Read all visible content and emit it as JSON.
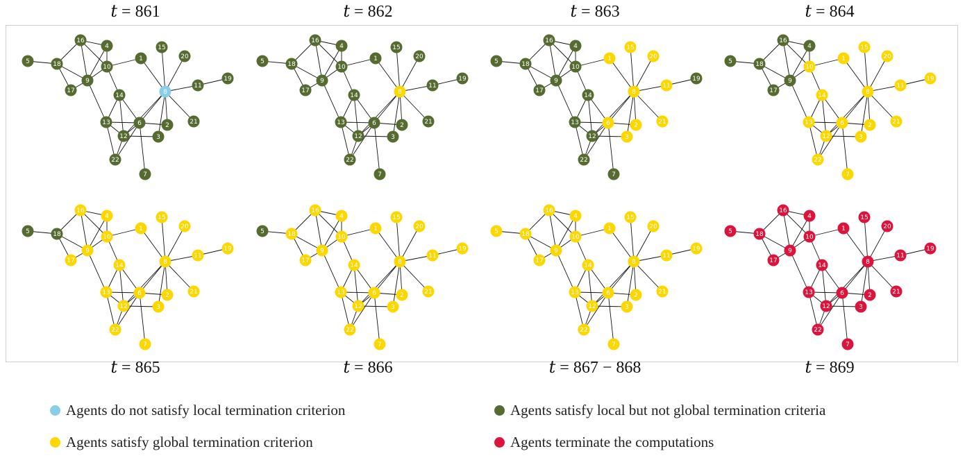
{
  "colors": {
    "not_local": "#87ceeb",
    "local": "#556b2f",
    "global": "#ffd700",
    "terminated": "#dc143c",
    "edge": "#111111"
  },
  "panels": [
    {
      "title": "𝑡 = 861",
      "states": {
        "default": "local",
        "8": "not_local"
      }
    },
    {
      "title": "𝑡 = 862",
      "states": {
        "default": "local",
        "8": "global"
      }
    },
    {
      "title": "𝑡 = 863",
      "states": {
        "default": "local",
        "1": "global",
        "15": "global",
        "20": "global",
        "11": "global",
        "8": "global",
        "6": "global",
        "2": "global",
        "3": "global",
        "21": "global"
      }
    },
    {
      "title": "𝑡 = 864",
      "states": {
        "default": "global",
        "5": "local",
        "18": "local",
        "16": "local",
        "4": "local",
        "17": "local",
        "9": "local"
      }
    },
    {
      "title": "𝑡 = 865",
      "states": {
        "default": "global",
        "5": "local",
        "18": "local"
      }
    },
    {
      "title": "𝑡 = 866",
      "states": {
        "default": "global",
        "5": "local"
      }
    },
    {
      "title": "𝑡 = 867 − 868",
      "states": {
        "default": "global"
      }
    },
    {
      "title": "𝑡 = 869",
      "states": {
        "default": "terminated"
      }
    }
  ],
  "nodes": [
    {
      "id": "5"
    },
    {
      "id": "18"
    },
    {
      "id": "16"
    },
    {
      "id": "17"
    },
    {
      "id": "9"
    },
    {
      "id": "4"
    },
    {
      "id": "10"
    },
    {
      "id": "1"
    },
    {
      "id": "15"
    },
    {
      "id": "20"
    },
    {
      "id": "8"
    },
    {
      "id": "11"
    },
    {
      "id": "19"
    },
    {
      "id": "14"
    },
    {
      "id": "13"
    },
    {
      "id": "6"
    },
    {
      "id": "12"
    },
    {
      "id": "3"
    },
    {
      "id": "2"
    },
    {
      "id": "21"
    },
    {
      "id": "22"
    },
    {
      "id": "7"
    }
  ],
  "edges": [
    [
      "5",
      "18"
    ],
    [
      "18",
      "16"
    ],
    [
      "18",
      "17"
    ],
    [
      "18",
      "9"
    ],
    [
      "16",
      "9"
    ],
    [
      "16",
      "4"
    ],
    [
      "16",
      "10"
    ],
    [
      "4",
      "9"
    ],
    [
      "4",
      "10"
    ],
    [
      "9",
      "10"
    ],
    [
      "17",
      "9"
    ],
    [
      "9",
      "13"
    ],
    [
      "10",
      "1"
    ],
    [
      "10",
      "14"
    ],
    [
      "1",
      "8"
    ],
    [
      "15",
      "8"
    ],
    [
      "20",
      "8"
    ],
    [
      "8",
      "11"
    ],
    [
      "11",
      "19"
    ],
    [
      "8",
      "6"
    ],
    [
      "8",
      "2"
    ],
    [
      "8",
      "3"
    ],
    [
      "8",
      "21"
    ],
    [
      "8",
      "12"
    ],
    [
      "14",
      "13"
    ],
    [
      "14",
      "6"
    ],
    [
      "14",
      "12"
    ],
    [
      "13",
      "6"
    ],
    [
      "13",
      "12"
    ],
    [
      "13",
      "22"
    ],
    [
      "6",
      "12"
    ],
    [
      "6",
      "2"
    ],
    [
      "6",
      "7"
    ],
    [
      "12",
      "3"
    ],
    [
      "12",
      "22"
    ],
    [
      "6",
      "22"
    ]
  ],
  "legend": [
    {
      "key": "not_local",
      "label": "Agents do not satisfy local termination criterion"
    },
    {
      "key": "local",
      "label": "Agents satisfy local but not global termination criteria"
    },
    {
      "key": "global",
      "label": "Agents satisfy global termination criterion"
    },
    {
      "key": "terminated",
      "label": "Agents terminate the computations"
    }
  ]
}
